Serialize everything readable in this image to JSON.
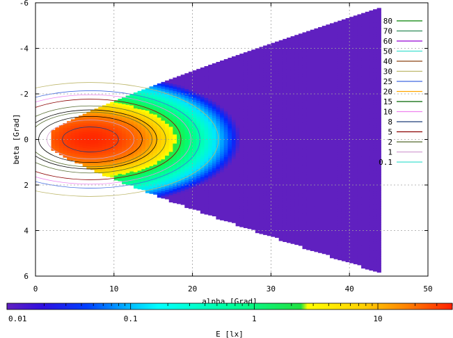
{
  "chart_data": {
    "type": "heatmap",
    "title": "",
    "xlabel": "alpha [Grad]",
    "ylabel": "beta [Grad]",
    "xlim": [
      0,
      50
    ],
    "ylim": [
      -6,
      6
    ],
    "y_axis_inverted": true,
    "x_ticks": [
      "0",
      "10",
      "20",
      "30",
      "40",
      "50"
    ],
    "y_ticks": [
      "-6",
      "-4",
      "-2",
      "0",
      "2",
      "4",
      "6"
    ],
    "grid": true,
    "colorbar": {
      "label": "E [lx]",
      "scale": "log",
      "range": [
        0.01,
        40
      ],
      "tick_labels": [
        "0.01",
        "0.1",
        "1",
        "10"
      ]
    },
    "legend_placement": "right",
    "contour_levels": [
      {
        "level": "80",
        "color": "#008000"
      },
      {
        "level": "70",
        "color": "#2e8b57"
      },
      {
        "level": "60",
        "color": "#9400d3"
      },
      {
        "level": "50",
        "color": "#40e0d0"
      },
      {
        "level": "40",
        "color": "#8b4513"
      },
      {
        "level": "30",
        "color": "#bdb76b"
      },
      {
        "level": "25",
        "color": "#4169e1"
      },
      {
        "level": "20",
        "color": "#ffa500"
      },
      {
        "level": "15",
        "color": "#006400"
      },
      {
        "level": "10",
        "color": "#ee82ee"
      },
      {
        "level": "8",
        "color": "#1e3c78"
      },
      {
        "level": "5",
        "color": "#8b0000"
      },
      {
        "level": "2",
        "color": "#556b2f"
      },
      {
        "level": "1",
        "color": "#d2a0d2"
      },
      {
        "level": "0.1",
        "color": "#40e0d0"
      }
    ],
    "field_extent": {
      "alpha_start": 2,
      "alpha_end": 44,
      "beta_halfwidth_at_end": 5.8
    },
    "peak": {
      "alpha": 7,
      "beta": 0,
      "value": 40
    }
  }
}
